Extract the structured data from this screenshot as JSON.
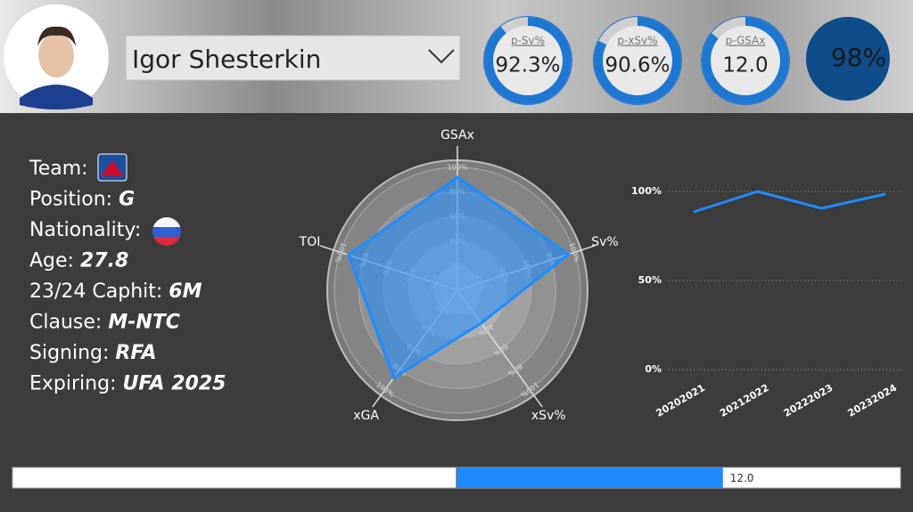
{
  "header": {
    "player": "Igor Shesterkin"
  },
  "info": [
    {
      "label": "Team:"
    },
    {
      "label": "Position:",
      "value": "G"
    },
    {
      "label": "Nationality:"
    },
    {
      "label": "Age:",
      "value": 27.8
    },
    {
      "label": "23/24 Caphit:",
      "value": "6M"
    },
    {
      "label": "Clause:",
      "value": "M-NTC"
    },
    {
      "label": "Signing:",
      "value": "RFA"
    },
    {
      "label": "Expiring:",
      "value": "UFA 2025"
    }
  ],
  "chart_data": [
    {
      "type": "gauge",
      "title": "p-Sv%",
      "value": 92.3,
      "value_label": "92.3%",
      "ylim": [
        70,
        95
      ],
      "color": "#1e78d2"
    },
    {
      "type": "gauge",
      "title": "p-xSv%",
      "value": 90.6,
      "value_label": "90.6%",
      "ylim": [
        70,
        95
      ],
      "color": "#1e78d2"
    },
    {
      "type": "gauge",
      "title": "p-GSAx",
      "value": 12.0,
      "value_label": "12.0",
      "ylim": [
        0,
        14
      ],
      "color": "#1e78d2"
    },
    {
      "type": "card",
      "value": 98,
      "value_label": "98%",
      "color": "#0f4c8a"
    },
    {
      "type": "radar",
      "categories": [
        "GSAx",
        "Sv%",
        "xSv%",
        "xGA",
        "TOI"
      ],
      "values": [
        92,
        95,
        33,
        88,
        93
      ],
      "rlim": [
        0,
        100
      ],
      "rticks": [
        {
          "value": 20,
          "label": "20%"
        },
        {
          "value": 40,
          "label": "40%"
        },
        {
          "value": 60,
          "label": "60%"
        },
        {
          "value": 80,
          "label": "80%"
        },
        {
          "value": 100,
          "label": "100%"
        }
      ],
      "color": "#1e8cff"
    },
    {
      "type": "line",
      "categories": [
        "20202021",
        "20212022",
        "20222023",
        "20232024"
      ],
      "values": [
        88.5,
        100,
        90.5,
        98.5
      ],
      "ylim": [
        0,
        100
      ],
      "yticks": [
        {
          "value": 0,
          "label": "0%"
        },
        {
          "value": 50,
          "label": "50%"
        },
        {
          "value": 100,
          "label": "100%"
        }
      ],
      "grid": true,
      "color": "#1e8cff"
    },
    {
      "type": "progress",
      "value": 12.0,
      "value_label": "12.0",
      "xlim": [
        -20,
        20
      ],
      "color": "#1e8cff"
    }
  ]
}
